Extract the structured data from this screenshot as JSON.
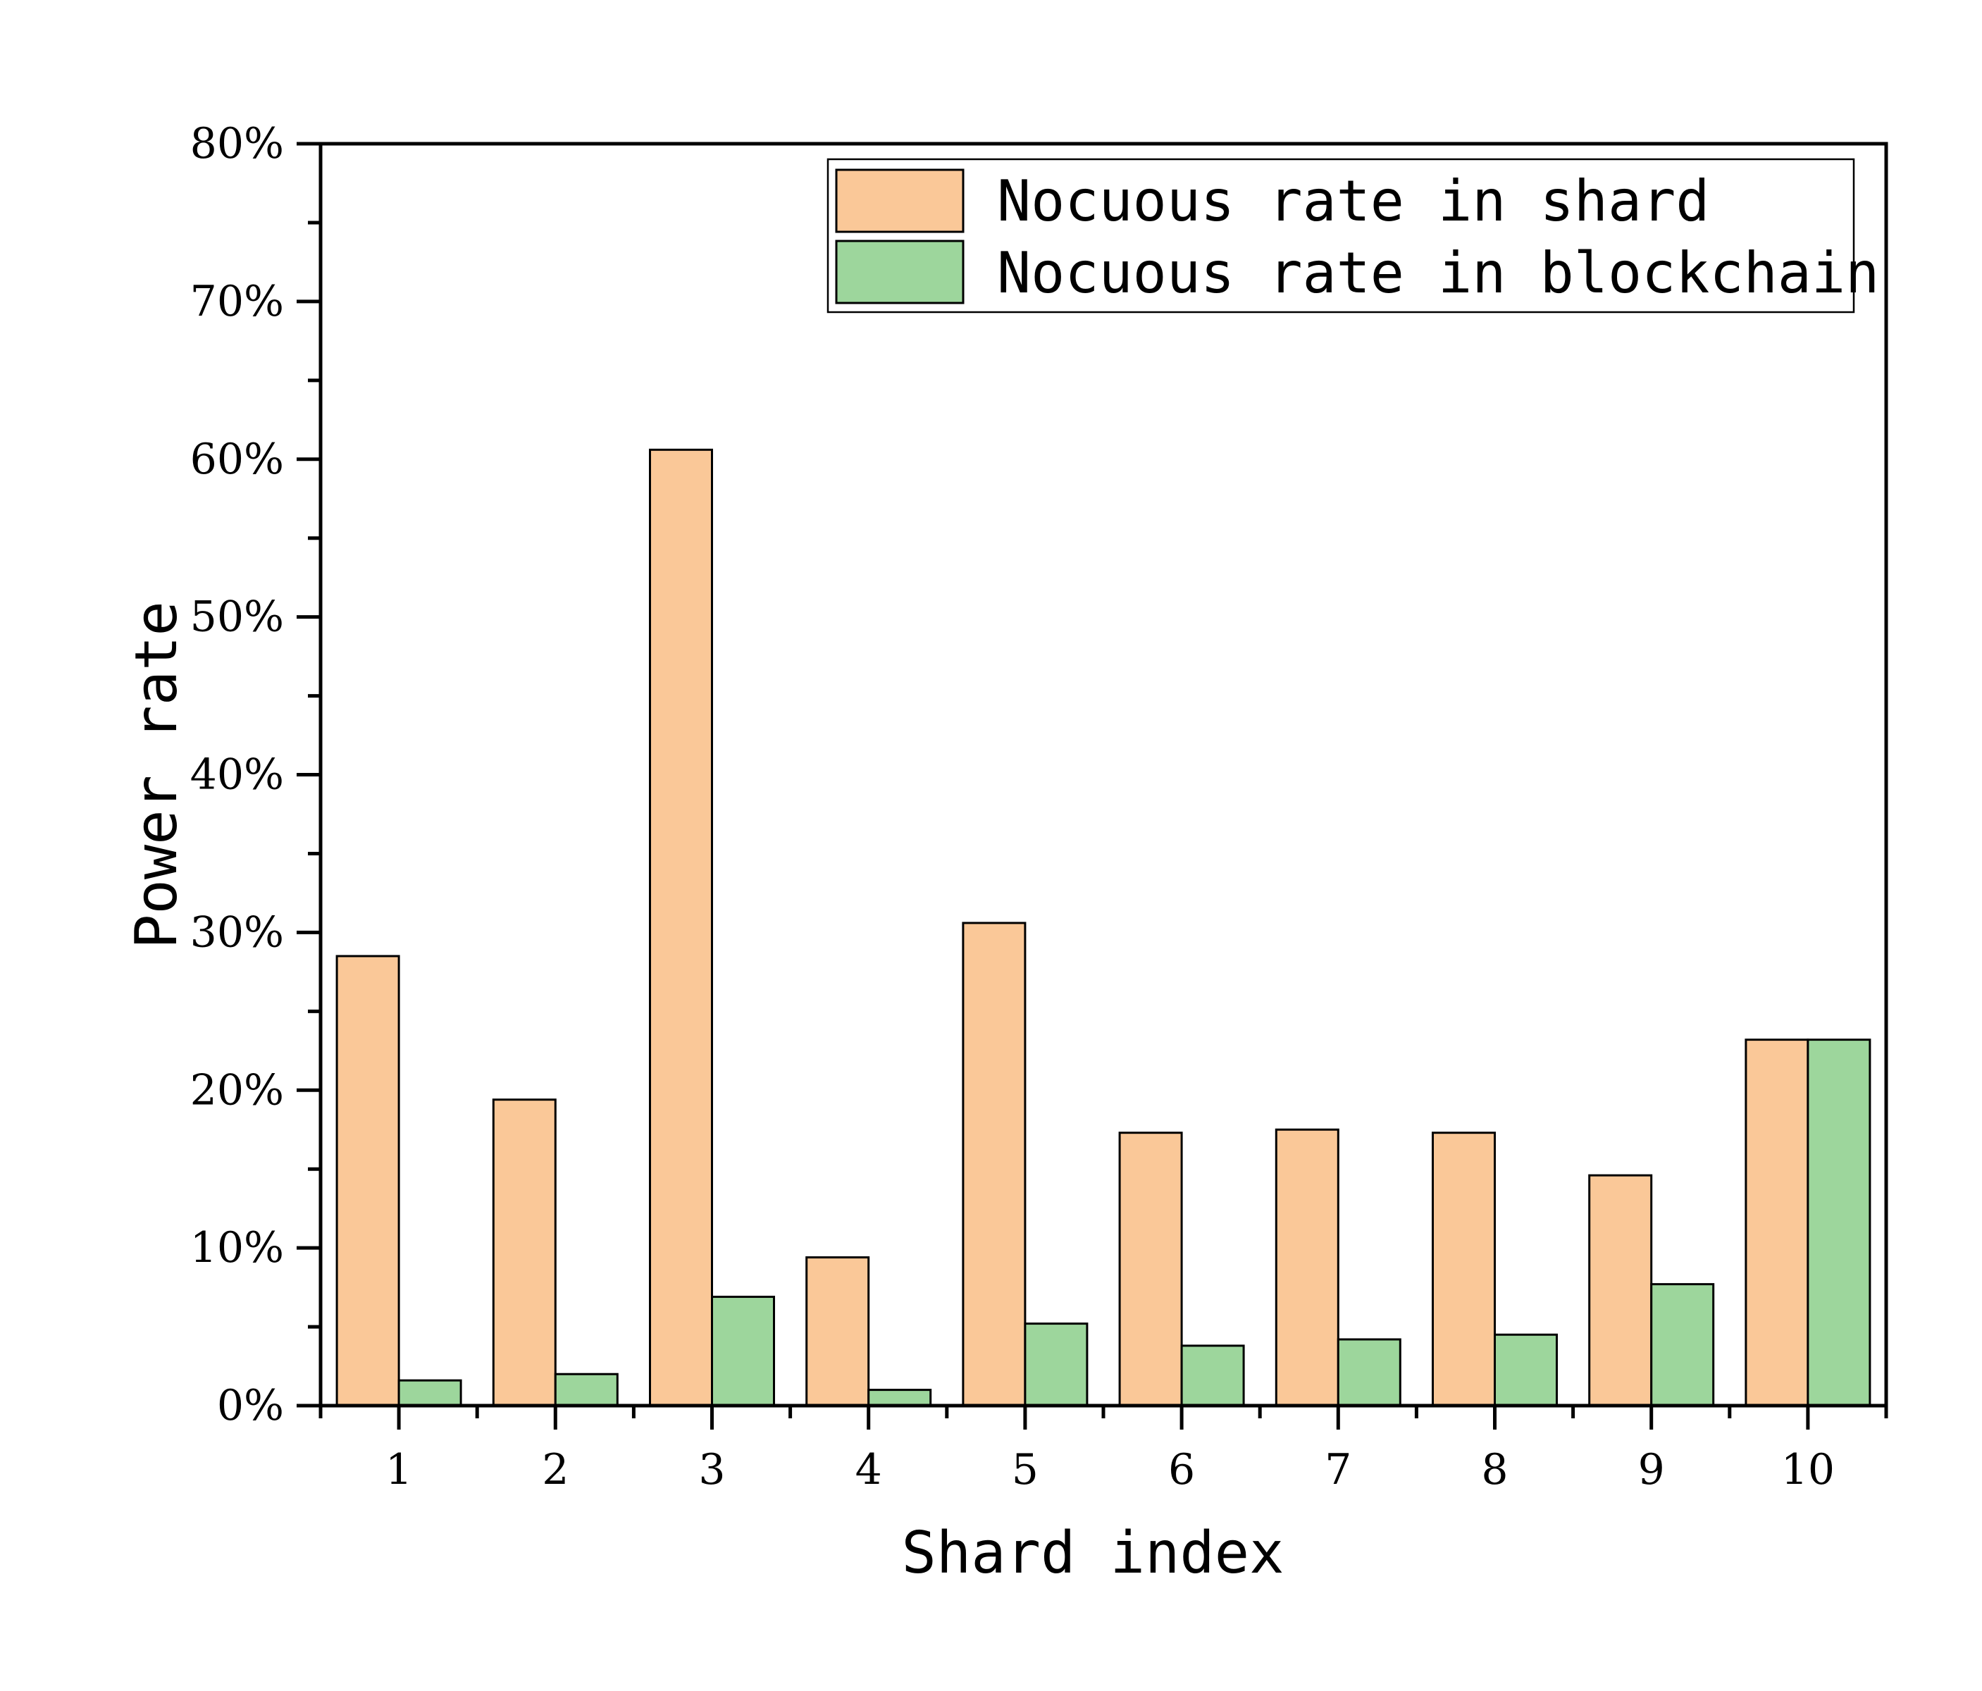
{
  "chart_data": {
    "type": "bar",
    "title": "",
    "xlabel": "Shard index",
    "ylabel": "Power rate",
    "categories": [
      "1",
      "2",
      "3",
      "4",
      "5",
      "6",
      "7",
      "8",
      "9",
      "10"
    ],
    "series": [
      {
        "name": "Nocuous rate in shard",
        "color": "#FAC898",
        "values": [
          28.5,
          19.4,
          60.6,
          9.4,
          30.6,
          17.3,
          17.5,
          17.3,
          14.6,
          23.2
        ]
      },
      {
        "name": "Nocuous rate in blockchain",
        "color": "#9DD69C",
        "values": [
          1.6,
          2.0,
          6.9,
          1.0,
          5.2,
          3.8,
          4.2,
          4.5,
          7.7,
          23.2
        ]
      }
    ],
    "ylim": [
      0,
      80
    ],
    "yticks": [
      0,
      10,
      20,
      30,
      40,
      50,
      60,
      70,
      80
    ],
    "ytick_labels": [
      "0%",
      "10%",
      "20%",
      "30%",
      "40%",
      "50%",
      "60%",
      "70%",
      "80%"
    ],
    "legend_position": "top-right",
    "grid": false
  }
}
